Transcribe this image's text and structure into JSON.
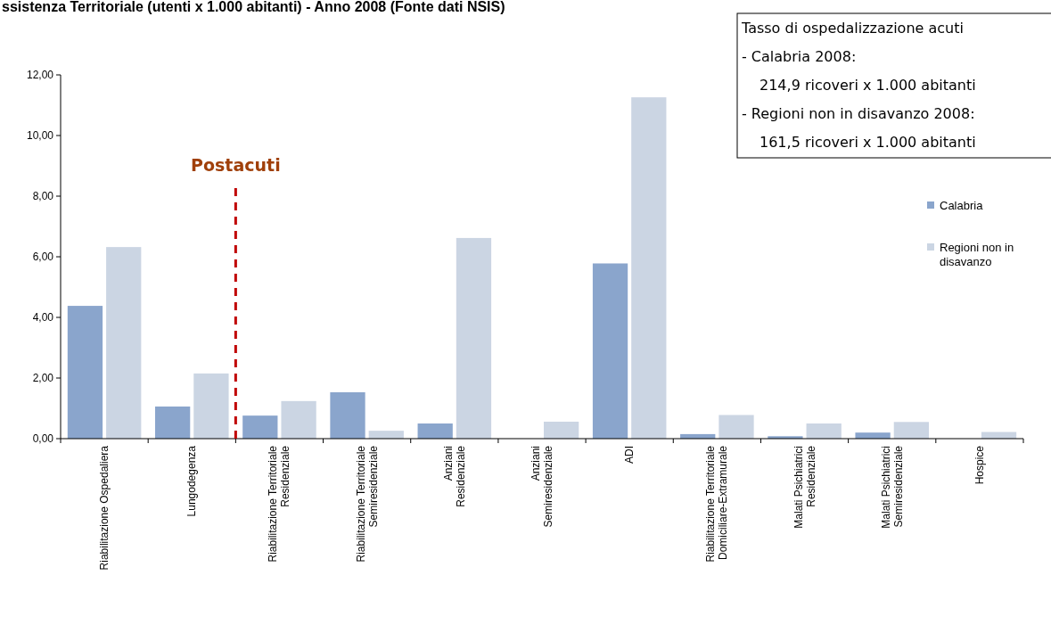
{
  "chart_data": {
    "type": "bar",
    "title": "ssistenza Territoriale (utenti x 1.000 abitanti) - Anno 2008 (Fonte dati NSIS)",
    "categories": [
      "Riabilitazione Ospedaliera",
      "Lungodegenza",
      "Riabilitazione Territoriale\nResidenziale",
      "Riabilitazione Territoriale\nSemiresidenziale",
      "Anziani\nResidenziale",
      "Anziani\nSemiresidenziale",
      "ADI",
      "Riabilitazione Territoriale\nDomiciliare-Extramurale",
      "Malati Psichiatrici\nResidenziale",
      "Malati Psichiatrici\nSemiresidenziale",
      "Hospice"
    ],
    "series": [
      {
        "name": "Calabria",
        "color": "#8aa5cc",
        "values": [
          4.38,
          1.06,
          0.76,
          1.53,
          0.5,
          null,
          5.78,
          0.15,
          0.08,
          0.2,
          null
        ]
      },
      {
        "name": "Regioni non in disavanzo",
        "color": "#cbd5e3",
        "values": [
          6.32,
          2.15,
          1.24,
          0.26,
          6.62,
          0.56,
          11.26,
          0.78,
          0.5,
          0.55,
          0.22
        ]
      }
    ],
    "ylim": [
      0,
      12
    ],
    "yticks": [
      {
        "value": 0,
        "label": "0,00"
      },
      {
        "value": 2,
        "label": "2,00"
      },
      {
        "value": 4,
        "label": "4,00"
      },
      {
        "value": 6,
        "label": "6,00"
      },
      {
        "value": 8,
        "label": "8,00"
      },
      {
        "value": 10,
        "label": "10,00"
      },
      {
        "value": 12,
        "label": "12,00"
      }
    ],
    "annotations": [
      "Postacuti",
      "Tasso di ospedalizzazione acuti",
      "- Calabria 2008:",
      "214,9 ricoveri x 1.000 abitanti",
      "- Regioni non in disavanzo 2008:",
      "161,5 ricoveri x 1.000 abitanti"
    ],
    "legend": "right",
    "grid": false
  }
}
